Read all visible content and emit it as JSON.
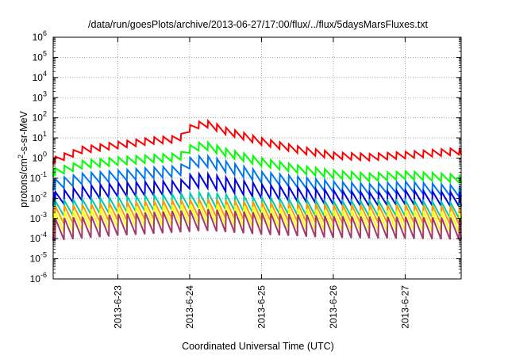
{
  "chart_data": {
    "type": "line",
    "title": "/data/run/goesPlots/archive/2013-06-27/17:00/flux/../flux/5daysMarsFluxes.txt",
    "xlabel": "Coordinated Universal Time (UTC)",
    "ylabel": {
      "pre": "protons/cm",
      "sup": "2",
      "post": "-s-sr-MeV"
    },
    "y_scale": "log",
    "y_exp_range": [
      -6,
      6
    ],
    "y_tick_base": "10",
    "y_tick_exponents": [
      "6",
      "5",
      "4",
      "3",
      "2",
      "1",
      "0",
      "-1",
      "-2",
      "-3",
      "-4",
      "-5",
      "-6"
    ],
    "x_range_days": [
      22.1,
      27.78
    ],
    "x_ticks": [
      {
        "day": 23,
        "label": "2013-6-23"
      },
      {
        "day": 24,
        "label": "2013-6-24"
      },
      {
        "day": 25,
        "label": "2013-6-25"
      },
      {
        "day": 26,
        "label": "2013-6-26"
      },
      {
        "day": 27,
        "label": "2013-6-27"
      }
    ],
    "grid": true,
    "sawtooth_period_days": 0.125,
    "series": [
      {
        "color": "#ff0000",
        "env": [
          [
            22.1,
            0.5
          ],
          [
            22.5,
            1.7
          ],
          [
            23.0,
            3.0
          ],
          [
            23.5,
            5.0
          ],
          [
            23.85,
            6.0
          ],
          [
            24.0,
            20.0
          ],
          [
            24.2,
            38.0
          ],
          [
            24.5,
            15.0
          ],
          [
            25.0,
            4.5
          ],
          [
            25.5,
            1.8
          ],
          [
            26.0,
            0.9
          ],
          [
            26.5,
            0.75
          ],
          [
            27.0,
            0.95
          ],
          [
            27.78,
            1.5
          ]
        ],
        "amp": 2.2
      },
      {
        "color": "#00ff00",
        "env": [
          [
            22.1,
            0.12
          ],
          [
            22.5,
            0.3
          ],
          [
            23.0,
            0.45
          ],
          [
            23.5,
            0.6
          ],
          [
            23.85,
            0.7
          ],
          [
            24.0,
            1.8
          ],
          [
            24.2,
            2.8
          ],
          [
            24.5,
            1.2
          ],
          [
            25.0,
            0.4
          ],
          [
            25.5,
            0.18
          ],
          [
            26.0,
            0.1
          ],
          [
            26.5,
            0.07
          ],
          [
            27.0,
            0.09
          ],
          [
            27.78,
            0.06
          ]
        ],
        "amp": 2.5
      },
      {
        "color": "#0077ee",
        "env": [
          [
            22.1,
            0.025
          ],
          [
            22.5,
            0.05
          ],
          [
            23.0,
            0.07
          ],
          [
            23.5,
            0.1
          ],
          [
            23.85,
            0.12
          ],
          [
            24.0,
            0.3
          ],
          [
            24.2,
            0.4
          ],
          [
            24.5,
            0.2
          ],
          [
            25.0,
            0.06
          ],
          [
            25.5,
            0.035
          ],
          [
            26.0,
            0.02
          ],
          [
            26.5,
            0.015
          ],
          [
            27.0,
            0.02
          ],
          [
            27.78,
            0.012
          ]
        ],
        "amp": 3.5
      },
      {
        "color": "#0000dd",
        "env": [
          [
            22.1,
            0.004
          ],
          [
            22.5,
            0.008
          ],
          [
            23.0,
            0.012
          ],
          [
            23.5,
            0.014
          ],
          [
            23.85,
            0.015
          ],
          [
            24.0,
            0.03
          ],
          [
            24.2,
            0.035
          ],
          [
            24.5,
            0.022
          ],
          [
            25.0,
            0.01
          ],
          [
            25.5,
            0.007
          ],
          [
            26.0,
            0.005
          ],
          [
            26.5,
            0.004
          ],
          [
            27.0,
            0.005
          ],
          [
            27.78,
            0.004
          ]
        ],
        "amp": 5.0
      },
      {
        "color": "#00ccaa",
        "env": [
          [
            22.1,
            0.0012
          ],
          [
            23.0,
            0.002
          ],
          [
            24.0,
            0.003
          ],
          [
            24.2,
            0.0035
          ],
          [
            25.0,
            0.0018
          ],
          [
            26.0,
            0.0012
          ],
          [
            27.0,
            0.0013
          ],
          [
            27.78,
            0.001
          ]
        ],
        "amp": 6.0
      },
      {
        "color": "#ff9900",
        "env": [
          [
            22.1,
            0.0005
          ],
          [
            23.0,
            0.0008
          ],
          [
            24.0,
            0.0011
          ],
          [
            24.2,
            0.0012
          ],
          [
            25.0,
            0.0008
          ],
          [
            26.0,
            0.0006
          ],
          [
            27.0,
            0.0006
          ],
          [
            27.78,
            0.0005
          ]
        ],
        "amp": 8.0
      },
      {
        "color": "#ffff00",
        "env": [
          [
            22.1,
            0.0002
          ],
          [
            23.0,
            0.00035
          ],
          [
            24.0,
            0.0005
          ],
          [
            24.2,
            0.00055
          ],
          [
            25.0,
            0.00035
          ],
          [
            26.0,
            0.00025
          ],
          [
            27.0,
            0.00025
          ],
          [
            27.78,
            0.0002
          ]
        ],
        "amp": 10.0
      },
      {
        "color": "#a33a6b",
        "env": [
          [
            22.1,
            8e-05
          ],
          [
            23.0,
            0.00014
          ],
          [
            24.0,
            0.00022
          ],
          [
            24.2,
            0.00025
          ],
          [
            25.0,
            0.00016
          ],
          [
            26.0,
            0.00011
          ],
          [
            27.0,
            0.0001
          ],
          [
            27.78,
            9e-05
          ]
        ],
        "amp": 12.0
      }
    ]
  }
}
